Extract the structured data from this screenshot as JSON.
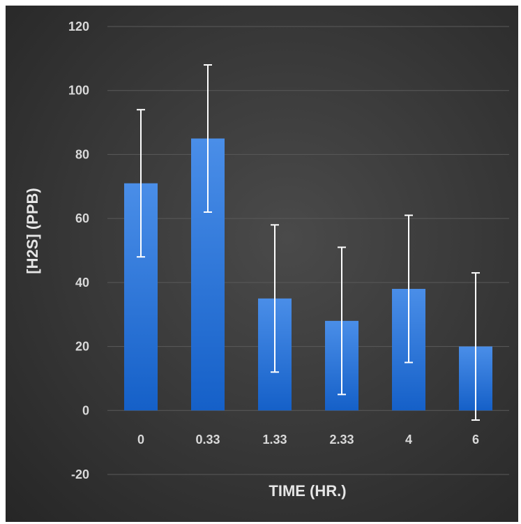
{
  "chart_data": {
    "type": "bar",
    "categories": [
      "0",
      "0.33",
      "1.33",
      "2.33",
      "4",
      "6"
    ],
    "values": [
      71,
      85,
      35,
      28,
      38,
      20
    ],
    "error_plus": [
      23,
      23,
      23,
      23,
      23,
      23
    ],
    "error_minus": [
      23,
      23,
      23,
      23,
      23,
      23
    ],
    "title": "",
    "xlabel": "TIME (HR.)",
    "ylabel": "[H2S] (PPB)",
    "ylim": [
      -20,
      120
    ],
    "yticks": [
      "-20",
      "0",
      "20",
      "40",
      "60",
      "80",
      "100",
      "120"
    ],
    "grid": true,
    "colors": {
      "bar_top": "#4a8ee8",
      "bar_bottom": "#1560c8",
      "error_bar": "#ffffff",
      "gridline": "#5a5a5a",
      "background": "#3a3a3a"
    }
  }
}
